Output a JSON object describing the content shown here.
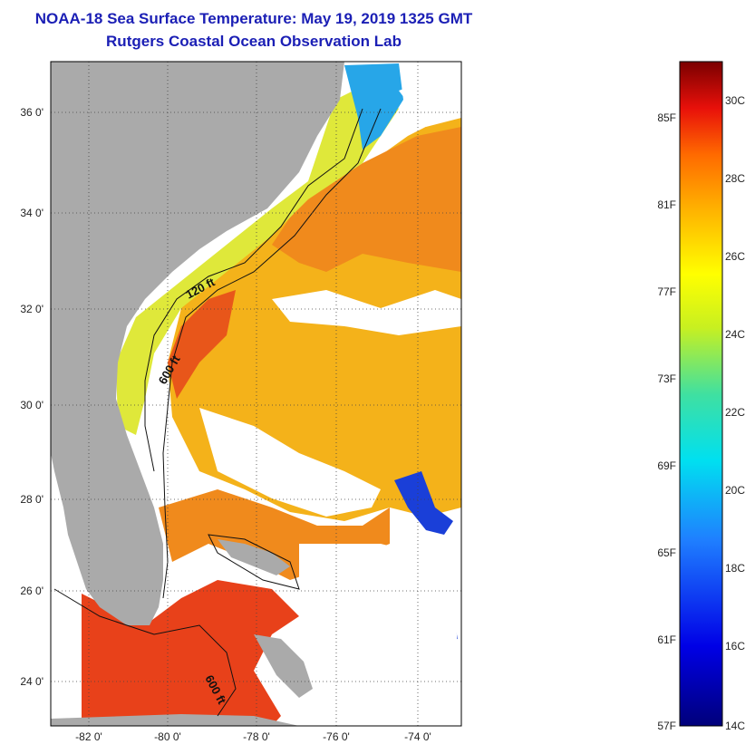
{
  "title": {
    "line1": "NOAA-18 Sea Surface Temperature:  May 19, 2019 1325 GMT",
    "line2": "Rutgers Coastal Ocean Observation Lab"
  },
  "lat_labels": [
    "36 0'",
    "34 0'",
    "32 0'",
    "30 0'",
    "28 0'",
    "26 0'",
    "24 0'"
  ],
  "lon_labels": [
    "-82 0'",
    "-80 0'",
    "-78 0'",
    "-76 0'",
    "-74 0'"
  ],
  "isobath_labels": [
    "120 ft",
    "600 ft",
    "600 ft"
  ],
  "colorbar": {
    "fahrenheit": [
      "85F",
      "81F",
      "77F",
      "73F",
      "69F",
      "65F",
      "61F",
      "57F"
    ],
    "celsius": [
      "30C",
      "28C",
      "26C",
      "24C",
      "22C",
      "20C",
      "18C",
      "16C",
      "14C"
    ]
  },
  "colors": {
    "title": "#1b1fb5",
    "land": "#aaaaaa",
    "warm": "#f08a1c",
    "hot": "#e8411a",
    "mid": "#f4b21a",
    "shelf": "#dfe83a",
    "cool": "#27a6e8"
  }
}
